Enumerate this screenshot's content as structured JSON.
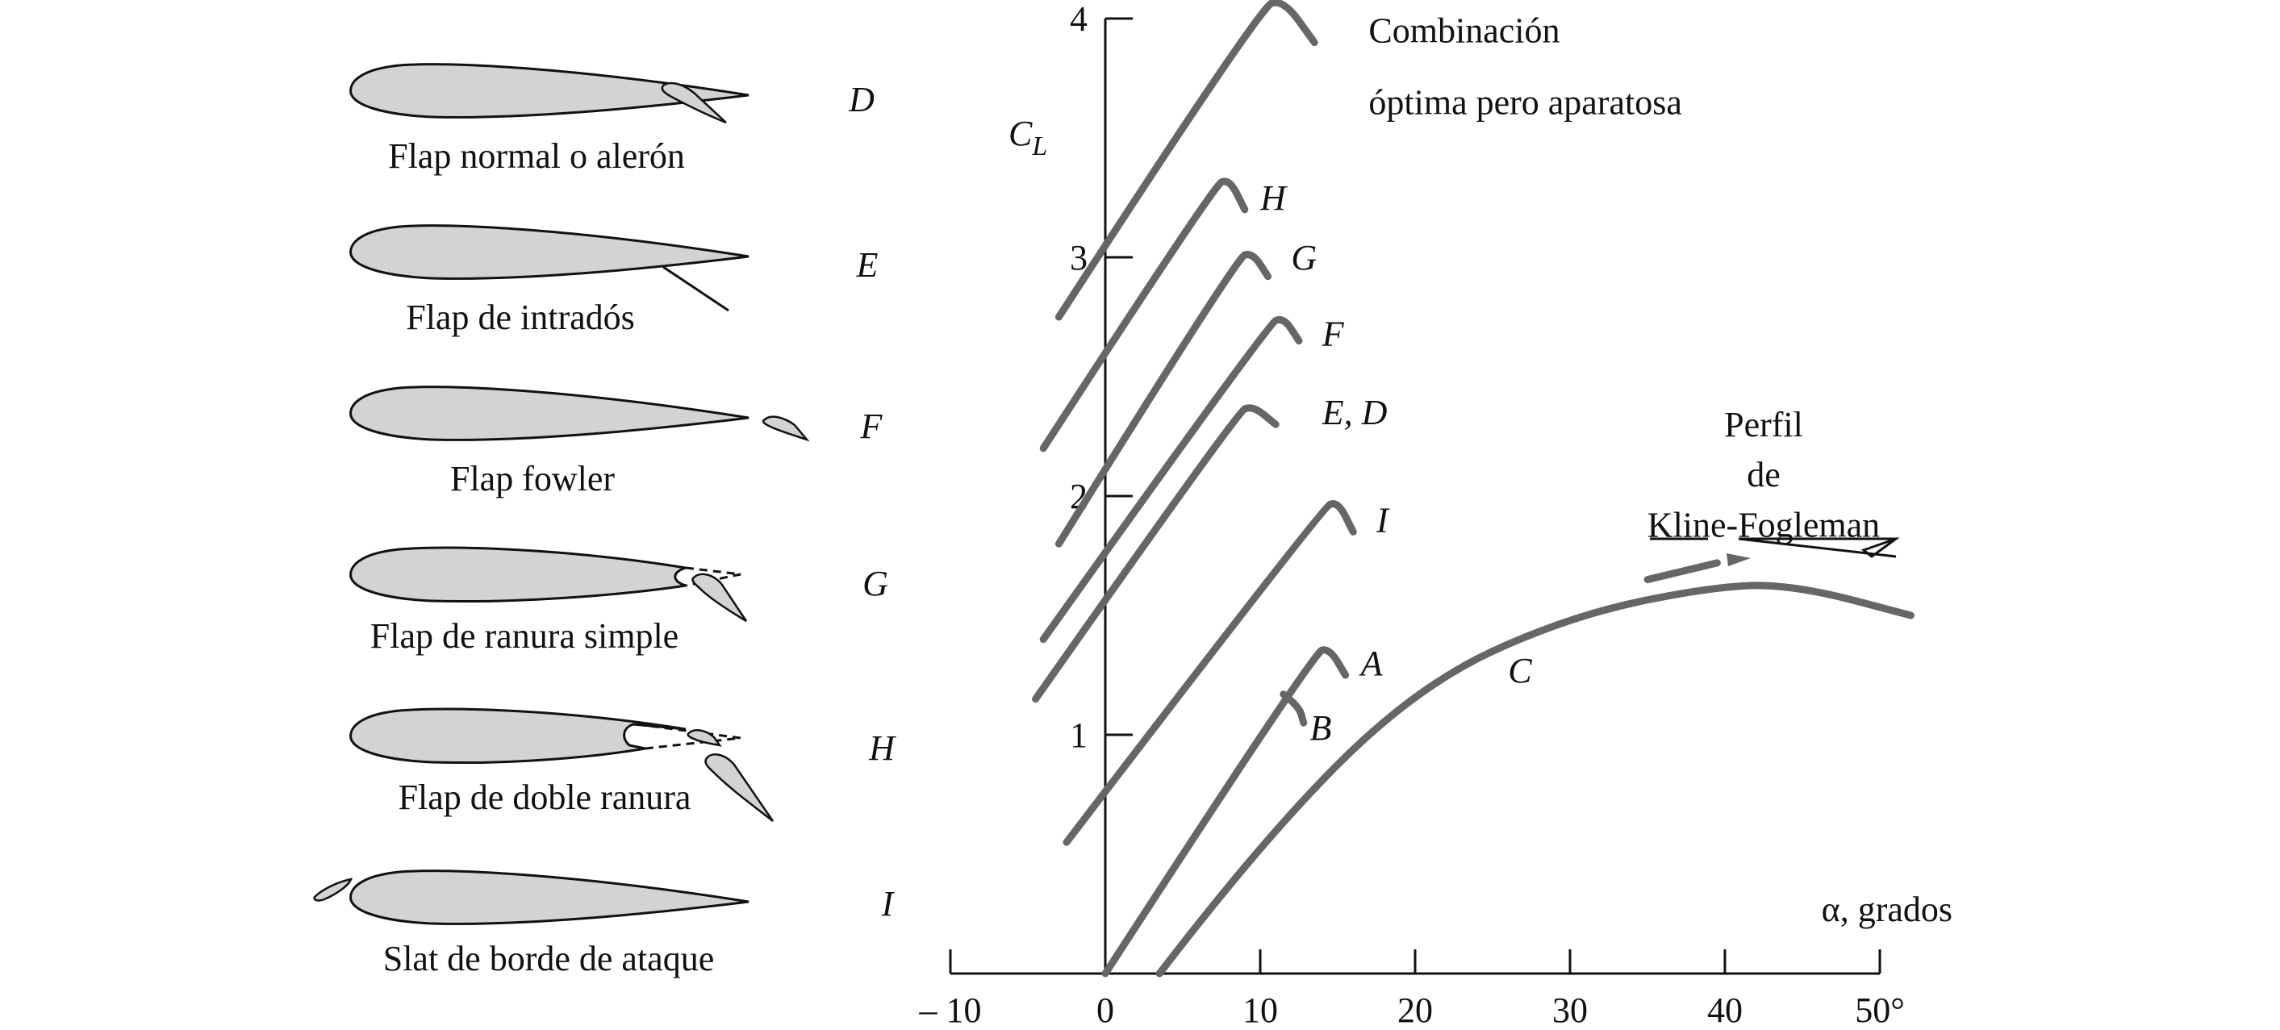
{
  "airfoils": [
    {
      "id": "D",
      "caption": "Flap normal o alerón",
      "letter": "D"
    },
    {
      "id": "E",
      "caption": "Flap de intradós",
      "letter": "E"
    },
    {
      "id": "F",
      "caption": "Flap fowler",
      "letter": "F"
    },
    {
      "id": "G",
      "caption": "Flap de ranura simple",
      "letter": "G"
    },
    {
      "id": "H",
      "caption": "Flap de doble ranura",
      "letter": "H"
    },
    {
      "id": "I",
      "caption": "Slat de borde de ataque",
      "letter": "I"
    }
  ],
  "chart_data": {
    "type": "line",
    "xlabel": "α, grados",
    "ylabel": "C",
    "ylabel_sub": "L",
    "xlim": [
      -10,
      50
    ],
    "ylim": [
      0,
      4
    ],
    "x_ticks": [
      -10,
      0,
      10,
      20,
      30,
      40,
      50
    ],
    "x_tick_labels": [
      "– 10",
      "0",
      "10",
      "20",
      "30",
      "40",
      "50°"
    ],
    "y_ticks": [
      1,
      2,
      3,
      4
    ],
    "y_tick_labels": [
      "1",
      "2",
      "3",
      "4"
    ],
    "series": [
      {
        "name": "Combinación óptima pero aparatosa",
        "x": [
          -3,
          10,
          11.5,
          13.5
        ],
        "y": [
          2.75,
          4.05,
          4.08,
          3.9
        ]
      },
      {
        "name": "H",
        "x": [
          -4,
          7,
          8,
          9
        ],
        "y": [
          2.2,
          3.3,
          3.33,
          3.2
        ]
      },
      {
        "name": "G",
        "x": [
          -3,
          8.5,
          9.5,
          10.5
        ],
        "y": [
          1.8,
          3.0,
          3.02,
          2.92
        ]
      },
      {
        "name": "F",
        "x": [
          -4,
          10.5,
          11.5,
          12.5
        ],
        "y": [
          1.4,
          2.72,
          2.75,
          2.65
        ]
      },
      {
        "name": "E, D",
        "x": [
          -4.5,
          8.5,
          9.5,
          11
        ],
        "y": [
          1.15,
          2.35,
          2.38,
          2.3
        ]
      },
      {
        "name": "I",
        "x": [
          -2.5,
          14,
          15,
          16
        ],
        "y": [
          0.55,
          1.95,
          1.98,
          1.85
        ]
      },
      {
        "name": "A",
        "x": [
          0,
          13.5,
          14.5,
          15.5
        ],
        "y": [
          0,
          1.35,
          1.36,
          1.25
        ]
      },
      {
        "name": "B",
        "x": [
          11.5,
          12.5,
          12.8
        ],
        "y": [
          1.17,
          1.12,
          1.05
        ]
      },
      {
        "name": "C",
        "x": [
          3.5,
          10,
          20,
          30,
          40,
          45,
          52
        ],
        "y": [
          0,
          0.55,
          1.2,
          1.5,
          1.63,
          1.62,
          1.5
        ]
      }
    ],
    "annotations": [
      {
        "text": "Combinación",
        "x": 17,
        "y": 3.9
      },
      {
        "text": "óptima pero aparatosa",
        "x": 17,
        "y": 3.6
      },
      {
        "text": "H",
        "x": 10,
        "y": 3.2
      },
      {
        "text": "G",
        "x": 12,
        "y": 2.95
      },
      {
        "text": "F",
        "x": 14,
        "y": 2.63
      },
      {
        "text": "E, D",
        "x": 14,
        "y": 2.3
      },
      {
        "text": "I",
        "x": 17.5,
        "y": 1.85
      },
      {
        "text": "A",
        "x": 16.5,
        "y": 1.25
      },
      {
        "text": "B",
        "x": 13.2,
        "y": 0.98
      },
      {
        "text": "C",
        "x": 26,
        "y": 1.22
      },
      {
        "text": "Perfil",
        "x": 42.5,
        "y": 2.25
      },
      {
        "text": "de",
        "x": 42.5,
        "y": 2.04
      },
      {
        "text": "Kline-Fogleman",
        "x": 42.5,
        "y": 1.83
      }
    ]
  }
}
